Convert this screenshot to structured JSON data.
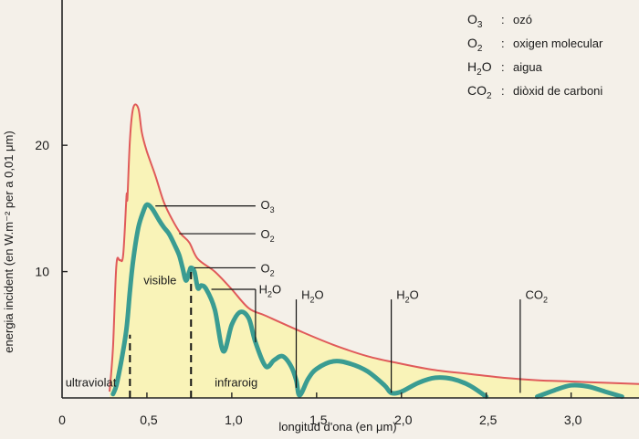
{
  "chart_data": {
    "type": "area",
    "title": "",
    "xlabel": "longitud d'ona (en μm)",
    "ylabel": "energia incident (en W.m⁻² per a 0,01 μm)",
    "xlim": [
      0,
      3.4
    ],
    "ylim": [
      0,
      31.5
    ],
    "x_ticks": [
      {
        "v": 0,
        "label": "0"
      },
      {
        "v": 0.5,
        "label": "0,5"
      },
      {
        "v": 1.0,
        "label": "1,0"
      },
      {
        "v": 1.5,
        "label": "1,5"
      },
      {
        "v": 2.0,
        "label": "2,0"
      },
      {
        "v": 2.5,
        "label": "2,5"
      },
      {
        "v": 3.0,
        "label": "3,0"
      }
    ],
    "y_ticks": [
      {
        "v": 10,
        "label": "10"
      },
      {
        "v": 20,
        "label": "20"
      }
    ],
    "colors": {
      "outside_atmosphere_line": "#e05a5a",
      "fill": "#f9f3b8",
      "surface_line": "#3a9c92",
      "axis": "#222222"
    },
    "series": [
      {
        "role": "outside-atmosphere",
        "x": [
          0.28,
          0.3,
          0.32,
          0.34,
          0.36,
          0.38,
          0.385,
          0.4,
          0.42,
          0.45,
          0.47,
          0.5,
          0.55,
          0.6,
          0.65,
          0.7,
          0.75,
          0.8,
          0.9,
          1.0,
          1.1,
          1.2,
          1.4,
          1.6,
          1.8,
          2.0,
          2.2,
          2.4,
          2.6,
          2.8,
          3.0,
          3.2,
          3.4
        ],
        "y": [
          0.5,
          4.0,
          10.5,
          10.9,
          11.3,
          16.0,
          15.8,
          20.5,
          23.0,
          22.9,
          21.0,
          19.5,
          17.6,
          15.5,
          14.1,
          13.0,
          12.3,
          11.0,
          10.0,
          8.6,
          7.1,
          6.5,
          5.3,
          4.2,
          3.3,
          2.7,
          2.2,
          1.9,
          1.6,
          1.4,
          1.3,
          1.2,
          1.1
        ]
      },
      {
        "role": "surface",
        "x": [
          0.3,
          0.32,
          0.35,
          0.38,
          0.4,
          0.42,
          0.45,
          0.48,
          0.5,
          0.53,
          0.57,
          0.6,
          0.63,
          0.66,
          0.69,
          0.71,
          0.73,
          0.75,
          0.76,
          0.78,
          0.8,
          0.82,
          0.85,
          0.9,
          0.95,
          1.0,
          1.05,
          1.1,
          1.14,
          1.2,
          1.25,
          1.3,
          1.35,
          1.38,
          1.4,
          1.45,
          1.5,
          1.6,
          1.7,
          1.8,
          1.9,
          1.94,
          2.0,
          2.1,
          2.2,
          2.3,
          2.4,
          2.5,
          2.8,
          2.9,
          3.0,
          3.1,
          3.2,
          3.3
        ],
        "y": [
          0.3,
          1.0,
          3.0,
          5.5,
          8.5,
          11.0,
          13.5,
          14.8,
          15.3,
          15.0,
          14.1,
          13.5,
          13.0,
          12.2,
          11.3,
          10.3,
          9.3,
          10.0,
          10.3,
          10.0,
          8.7,
          8.9,
          8.6,
          7.0,
          3.7,
          5.8,
          6.8,
          6.3,
          4.4,
          2.5,
          3.0,
          3.3,
          2.5,
          1.4,
          0.2,
          1.5,
          2.3,
          2.9,
          2.7,
          2.1,
          1.0,
          0.4,
          0.5,
          1.2,
          1.6,
          1.5,
          1.0,
          0.1,
          0.1,
          0.6,
          1.0,
          0.9,
          0.5,
          0.1
        ]
      }
    ],
    "dashed_lines": [
      {
        "x": 0.4,
        "y": 5.0
      },
      {
        "x": 0.76,
        "y": 10.3
      }
    ],
    "annotations": {
      "ultraviolat": {
        "text": "ultraviolat",
        "x": 0.02,
        "y": 0.9
      },
      "visible": {
        "text": "visible",
        "x": 0.48,
        "y": 9.0
      },
      "infraroig": {
        "text": "infraroig",
        "x": 0.9,
        "y": 0.9
      }
    },
    "absorptions": [
      {
        "base": "O",
        "sub": "3",
        "px": 0.55,
        "py": 15.2,
        "lx": 1.14,
        "ly": 15.2,
        "tx": 1.17,
        "ty": 15.3,
        "type": "horizontal"
      },
      {
        "base": "O",
        "sub": "2",
        "px": 0.69,
        "py": 13.0,
        "lx": 1.14,
        "ly": 13.0,
        "tx": 1.17,
        "ty": 13.0,
        "type": "horizontal"
      },
      {
        "base": "O",
        "sub": "2",
        "px": 0.78,
        "py": 10.3,
        "lx": 1.14,
        "ly": 10.3,
        "tx": 1.17,
        "ty": 10.3,
        "type": "horizontal"
      },
      {
        "base": "H",
        "sub": "2",
        "tail": "O",
        "px": 0.88,
        "py": 8.6,
        "lx": 1.14,
        "ly": 8.6,
        "tx": 1.16,
        "ty": 8.65,
        "vx": 1.14,
        "vy_bottom": 4.4,
        "type": "elbow"
      },
      {
        "base": "H",
        "sub": "2",
        "tail": "O",
        "vx": 1.38,
        "vy_top": 7.8,
        "vy_bottom": 0.8,
        "tx": 1.41,
        "ty": 8.2,
        "type": "vertical"
      },
      {
        "base": "H",
        "sub": "2",
        "tail": "O",
        "vx": 1.94,
        "vy_top": 7.8,
        "vy_bottom": 0.4,
        "tx": 1.97,
        "ty": 8.2,
        "type": "vertical"
      },
      {
        "base": "CO",
        "sub": "2",
        "vx": 2.7,
        "vy_top": 7.8,
        "vy_bottom": 0.4,
        "tx": 2.73,
        "ty": 8.2,
        "type": "vertical"
      }
    ],
    "legend": [
      {
        "base": "O",
        "sub": "3",
        "sep": ":",
        "text": "ozó"
      },
      {
        "base": "O",
        "sub": "2",
        "sep": ":",
        "text": "oxigen molecular"
      },
      {
        "base": "H",
        "sub": "2",
        "tail": "O",
        "sep": ":",
        "text": "aigua"
      },
      {
        "base": "CO",
        "sub": "2",
        "sep": ":",
        "text": "diòxid de carboni"
      }
    ],
    "legend_placement": "top-right",
    "grid": false
  }
}
